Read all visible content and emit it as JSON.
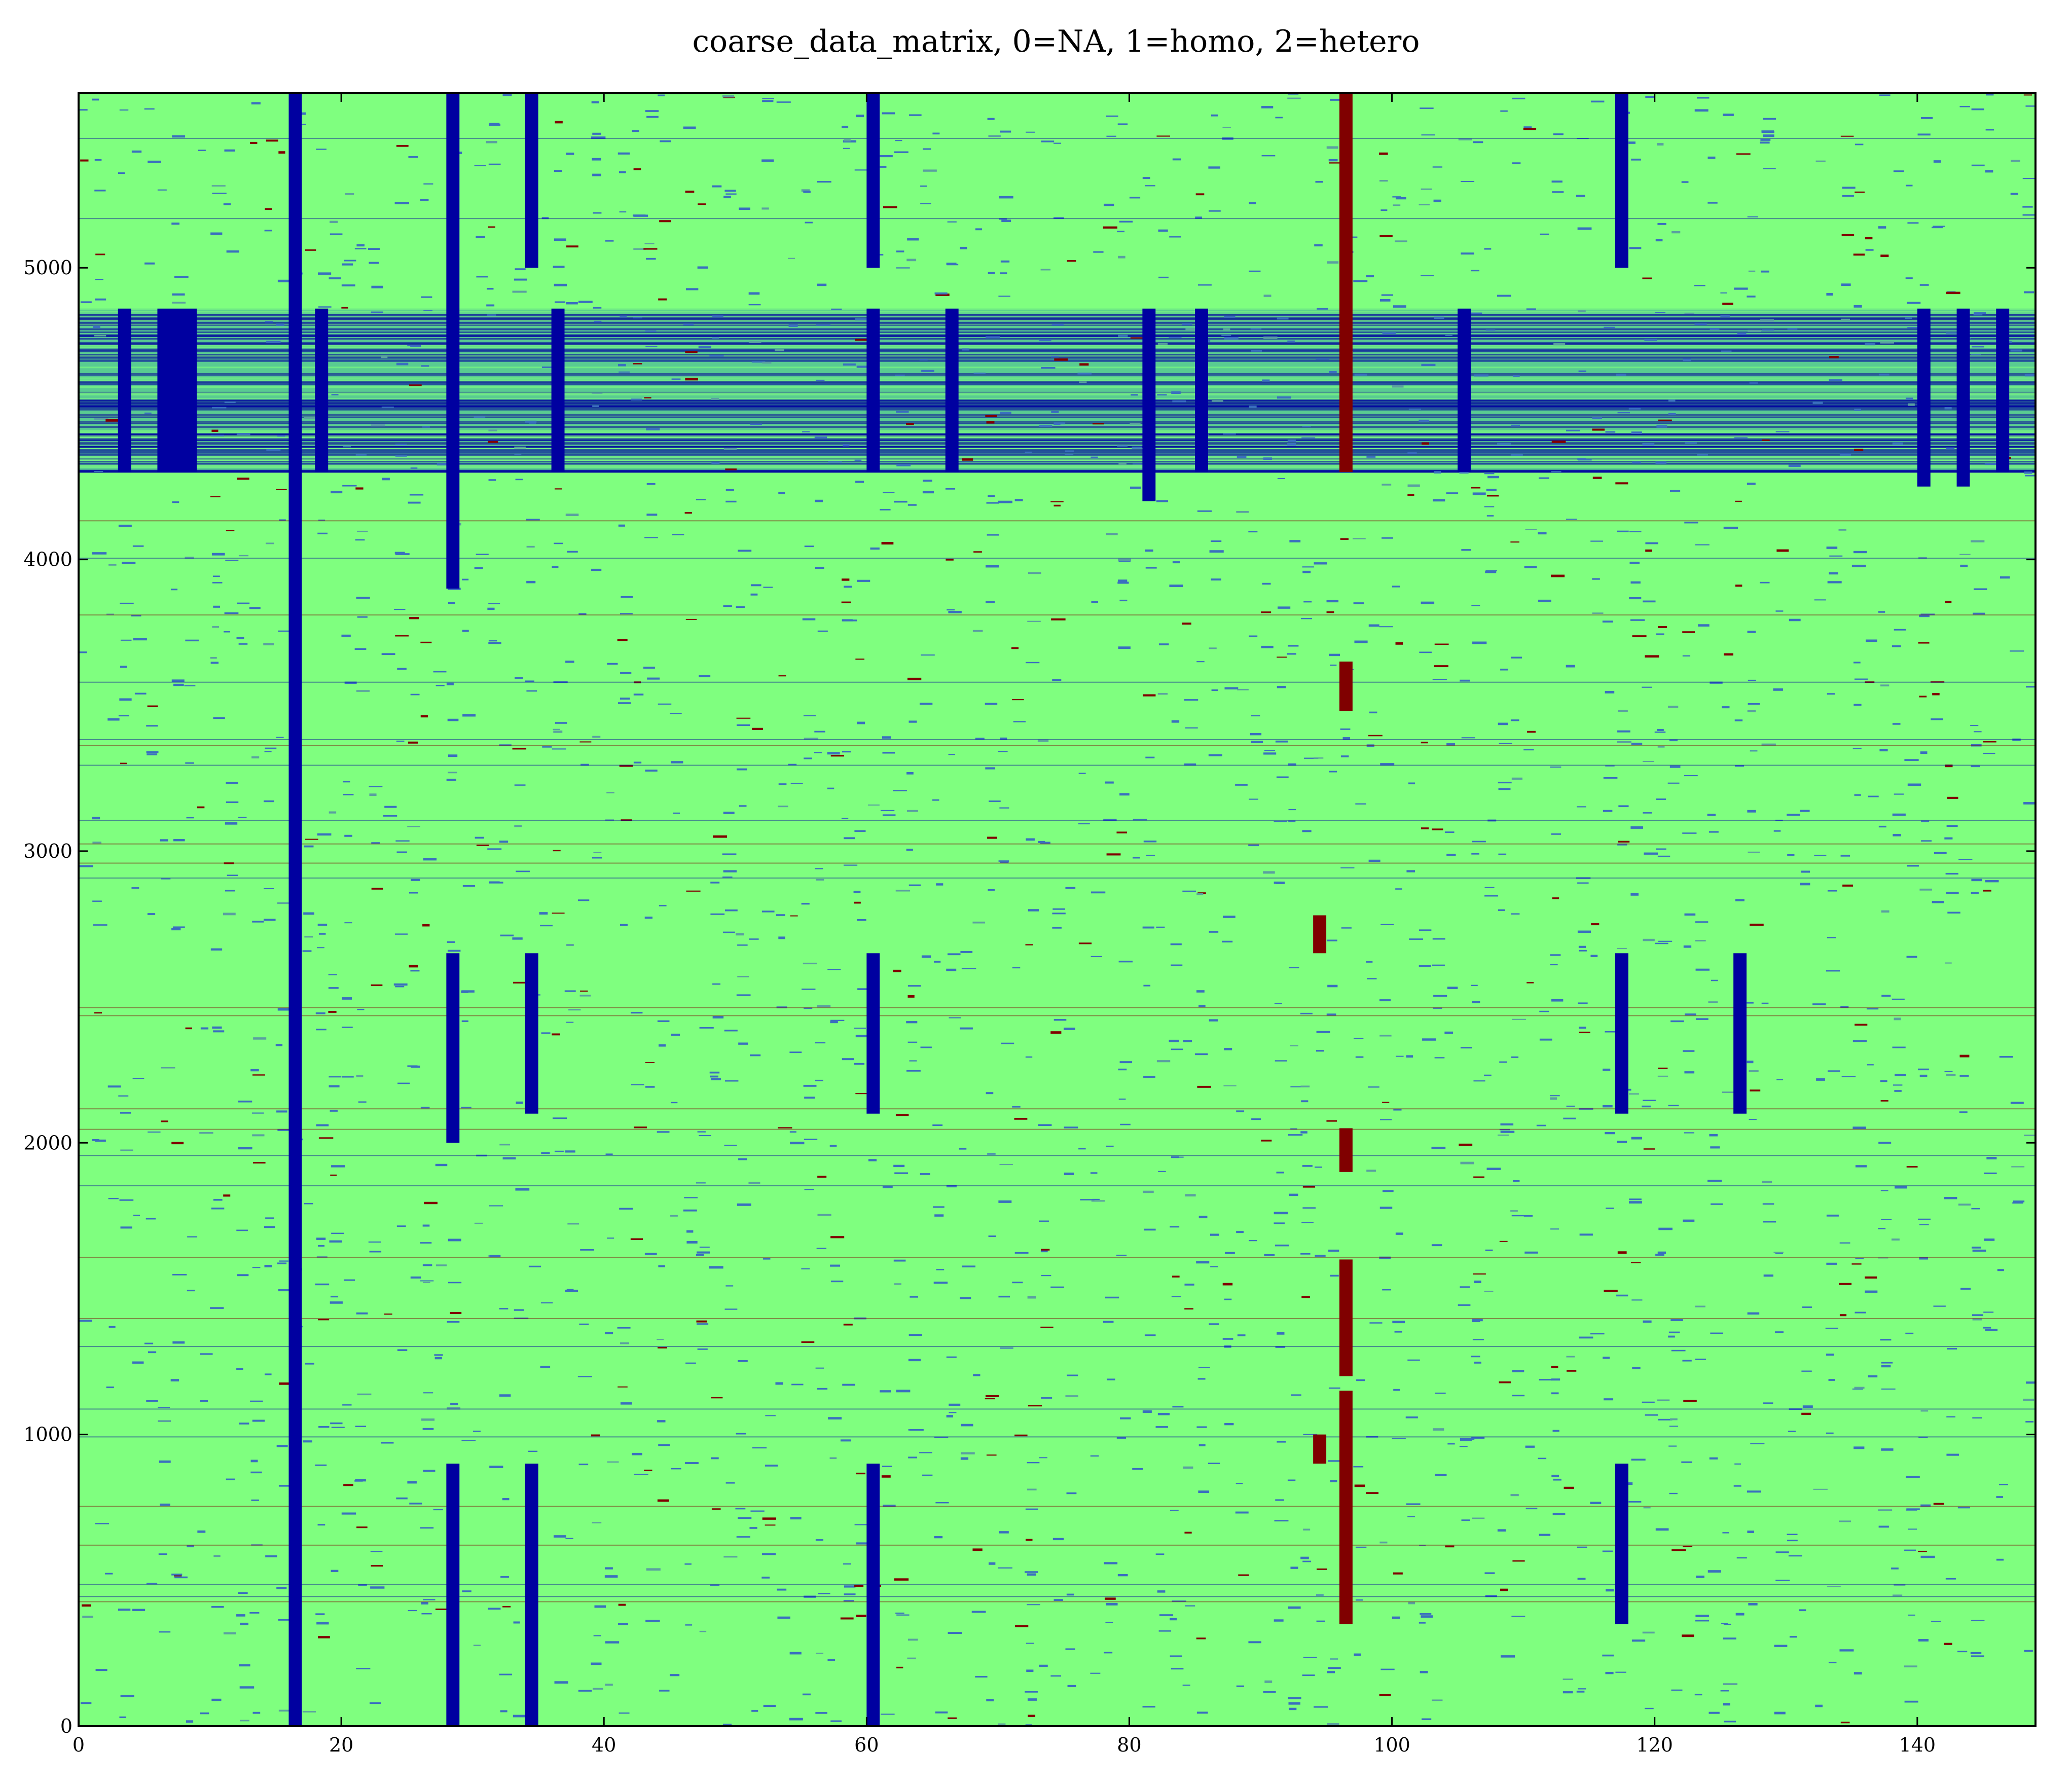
{
  "chart_data": {
    "type": "heatmap",
    "title": "coarse_data_matrix, 0=NA, 1=homo, 2=hetero",
    "xlabel": "",
    "ylabel": "",
    "xlim": [
      0,
      149
    ],
    "ylim": [
      0,
      5600
    ],
    "x_ticks": [
      0,
      20,
      40,
      60,
      80,
      100,
      120,
      140
    ],
    "y_ticks": [
      0,
      1000,
      2000,
      3000,
      4000,
      5000
    ],
    "x_tick_labels": [
      "0",
      "20",
      "40",
      "60",
      "80",
      "100",
      "120",
      "140"
    ],
    "y_tick_labels": [
      "0",
      "1000",
      "2000",
      "3000",
      "4000",
      "5000"
    ],
    "grid": false,
    "colormap": {
      "0": "#0000a0",
      "1": "#7fff7f",
      "2": "#800000"
    },
    "background_value": 1,
    "band_rows": [
      4300,
      4860
    ],
    "solid_columns": [
      16,
      28,
      34,
      60,
      117
    ],
    "value_blocks": [
      {
        "x0": 3,
        "x1": 4,
        "y0": 4300,
        "y1": 4860,
        "value": 0
      },
      {
        "x0": 6,
        "x1": 9,
        "y0": 4300,
        "y1": 4860,
        "value": 0
      },
      {
        "x0": 16,
        "x1": 17,
        "y0": 0,
        "y1": 5600,
        "value": 0
      },
      {
        "x0": 18,
        "x1": 19,
        "y0": 4300,
        "y1": 4860,
        "value": 0
      },
      {
        "x0": 28,
        "x1": 29,
        "y0": 3900,
        "y1": 5600,
        "value": 0
      },
      {
        "x0": 28,
        "x1": 29,
        "y0": 2000,
        "y1": 2650,
        "value": 0
      },
      {
        "x0": 28,
        "x1": 29,
        "y0": 0,
        "y1": 900,
        "value": 0
      },
      {
        "x0": 34,
        "x1": 35,
        "y0": 5000,
        "y1": 5600,
        "value": 0
      },
      {
        "x0": 34,
        "x1": 35,
        "y0": 2100,
        "y1": 2650,
        "value": 0
      },
      {
        "x0": 34,
        "x1": 35,
        "y0": 0,
        "y1": 900,
        "value": 0
      },
      {
        "x0": 36,
        "x1": 37,
        "y0": 4300,
        "y1": 4860,
        "value": 0
      },
      {
        "x0": 60,
        "x1": 61,
        "y0": 5000,
        "y1": 5600,
        "value": 0
      },
      {
        "x0": 60,
        "x1": 61,
        "y0": 4300,
        "y1": 4860,
        "value": 0
      },
      {
        "x0": 60,
        "x1": 61,
        "y0": 2100,
        "y1": 2650,
        "value": 0
      },
      {
        "x0": 60,
        "x1": 61,
        "y0": 0,
        "y1": 900,
        "value": 0
      },
      {
        "x0": 66,
        "x1": 67,
        "y0": 4300,
        "y1": 4860,
        "value": 0
      },
      {
        "x0": 81,
        "x1": 82,
        "y0": 4200,
        "y1": 4860,
        "value": 0
      },
      {
        "x0": 85,
        "x1": 86,
        "y0": 4300,
        "y1": 4860,
        "value": 0
      },
      {
        "x0": 96,
        "x1": 97,
        "y0": 4300,
        "y1": 5600,
        "value": 2
      },
      {
        "x0": 96,
        "x1": 97,
        "y0": 3480,
        "y1": 3650,
        "value": 2
      },
      {
        "x0": 96,
        "x1": 97,
        "y0": 1900,
        "y1": 2050,
        "value": 2
      },
      {
        "x0": 96,
        "x1": 97,
        "y0": 1200,
        "y1": 1600,
        "value": 2
      },
      {
        "x0": 96,
        "x1": 97,
        "y0": 350,
        "y1": 1150,
        "value": 2
      },
      {
        "x0": 94,
        "x1": 95,
        "y0": 2650,
        "y1": 2780,
        "value": 2
      },
      {
        "x0": 94,
        "x1": 95,
        "y0": 900,
        "y1": 1000,
        "value": 2
      },
      {
        "x0": 105,
        "x1": 106,
        "y0": 4300,
        "y1": 4860,
        "value": 0
      },
      {
        "x0": 117,
        "x1": 118,
        "y0": 5000,
        "y1": 5600,
        "value": 0
      },
      {
        "x0": 117,
        "x1": 118,
        "y0": 2100,
        "y1": 2650,
        "value": 0
      },
      {
        "x0": 117,
        "x1": 118,
        "y0": 350,
        "y1": 900,
        "value": 0
      },
      {
        "x0": 126,
        "x1": 127,
        "y0": 2100,
        "y1": 2650,
        "value": 0
      },
      {
        "x0": 140,
        "x1": 141,
        "y0": 4250,
        "y1": 4860,
        "value": 0
      },
      {
        "x0": 143,
        "x1": 144,
        "y0": 4250,
        "y1": 4860,
        "value": 0
      },
      {
        "x0": 146,
        "x1": 147,
        "y0": 4300,
        "y1": 4860,
        "value": 0
      }
    ]
  }
}
